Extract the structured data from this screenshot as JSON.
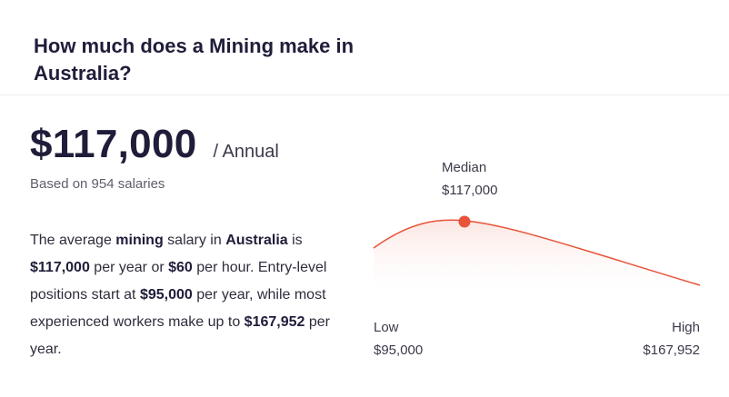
{
  "header": {
    "title": "How much does a Mining make in Australia?"
  },
  "salary": {
    "amount": "$117,000",
    "period": "/ Annual",
    "based_on": "Based on 954 salaries"
  },
  "description": {
    "t1": "The average ",
    "b1": "mining",
    "t2": " salary in ",
    "b2": "Australia",
    "t3": " is ",
    "b3": "$117,000",
    "t4": " per year or ",
    "b4": "$60",
    "t5": " per hour. Entry-level positions start at ",
    "b5": "$95,000",
    "t6": " per year, while most experienced workers make up to ",
    "b6": "$167,952",
    "t7": " per year."
  },
  "chart": {
    "median_label": "Median",
    "median_value": "$117,000",
    "low_label": "Low",
    "low_value": "$95,000",
    "high_label": "High",
    "high_value": "$167,952",
    "curve_color": "#e8543a",
    "fill_color": "#fbe3de"
  },
  "chart_data": {
    "type": "area",
    "x": [
      95000,
      117000,
      167952
    ],
    "point_labels": [
      "Low",
      "Median",
      "High"
    ],
    "values": [
      "$95,000",
      "$117,000",
      "$167,952"
    ]
  }
}
